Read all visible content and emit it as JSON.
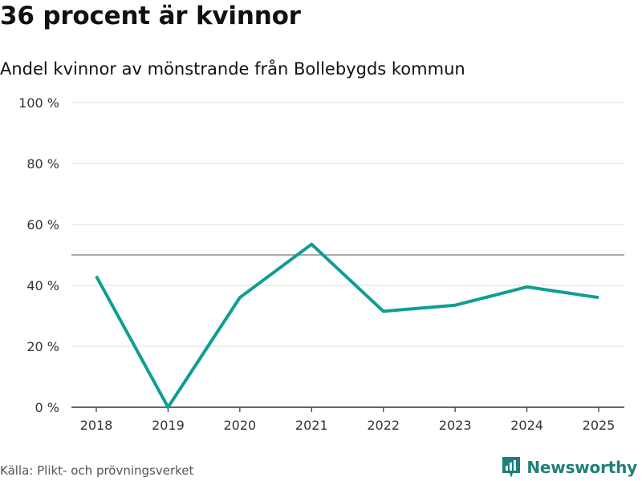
{
  "header": {
    "title": "36 procent är kvinnor",
    "subtitle": "Andel kvinnor av mönstrande från Bollebygds kommun"
  },
  "footer": {
    "source": "Källa: Plikt- och prövningsverket",
    "brand": "Newsworthy",
    "brand_icon": "newsworthy-logo-icon"
  },
  "colors": {
    "line": "#0f9e93",
    "grid": "#dddddd",
    "reference": "#777777",
    "axis": "#333333",
    "brand": "#1f7f7a"
  },
  "chart_data": {
    "type": "line",
    "title": "36 procent är kvinnor",
    "subtitle": "Andel kvinnor av mönstrande från Bollebygds kommun",
    "xlabel": "",
    "ylabel": "",
    "categories": [
      "2018",
      "2019",
      "2020",
      "2021",
      "2022",
      "2023",
      "2024",
      "2025"
    ],
    "series": [
      {
        "name": "Andel kvinnor",
        "values": [
          43,
          0,
          36,
          53.5,
          31.5,
          33.5,
          39.5,
          36
        ]
      }
    ],
    "ylim": [
      0,
      100
    ],
    "yticks": [
      0,
      20,
      40,
      60,
      80,
      100
    ],
    "ytick_labels": [
      "0 %",
      "20 %",
      "40 %",
      "60 %",
      "80 %",
      "100 %"
    ],
    "reference_line": 50,
    "grid": true
  }
}
